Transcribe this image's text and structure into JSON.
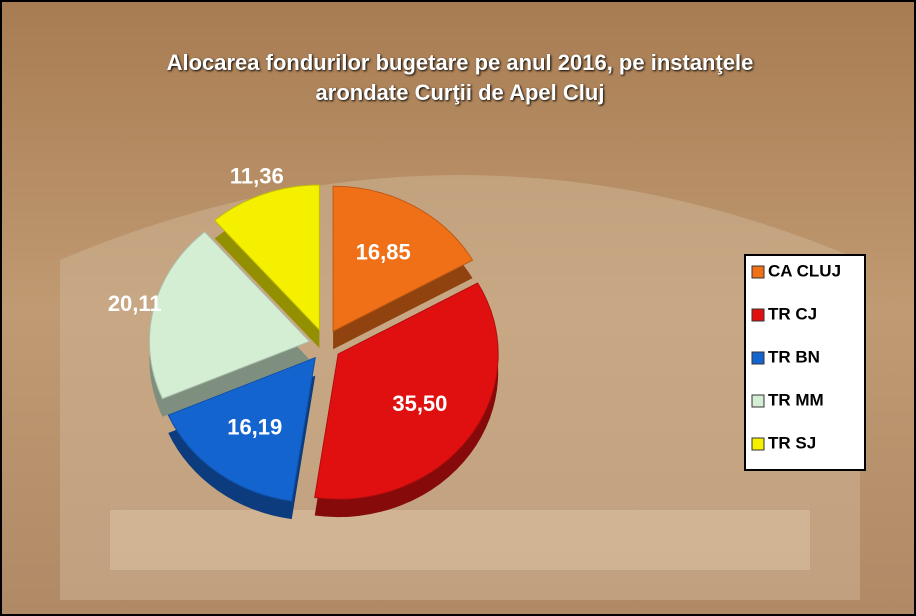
{
  "chart_data": {
    "type": "pie",
    "title": "Alocarea fondurilor bugetare pe anul 2016, pe instanţele arondate Curţii de Apel Cluj",
    "categories": [
      "CA CLUJ",
      "TR CJ",
      "TR BN",
      "TR MM",
      "TR SJ"
    ],
    "values": [
      16.85,
      35.5,
      16.19,
      20.11,
      11.36
    ],
    "value_labels": [
      "16,85",
      "35,50",
      "16,19",
      "20,11",
      "11,36"
    ],
    "colors": [
      "#f07018",
      "#e01010",
      "#1464d0",
      "#d4eed4",
      "#f4f000"
    ],
    "legend": "right"
  }
}
